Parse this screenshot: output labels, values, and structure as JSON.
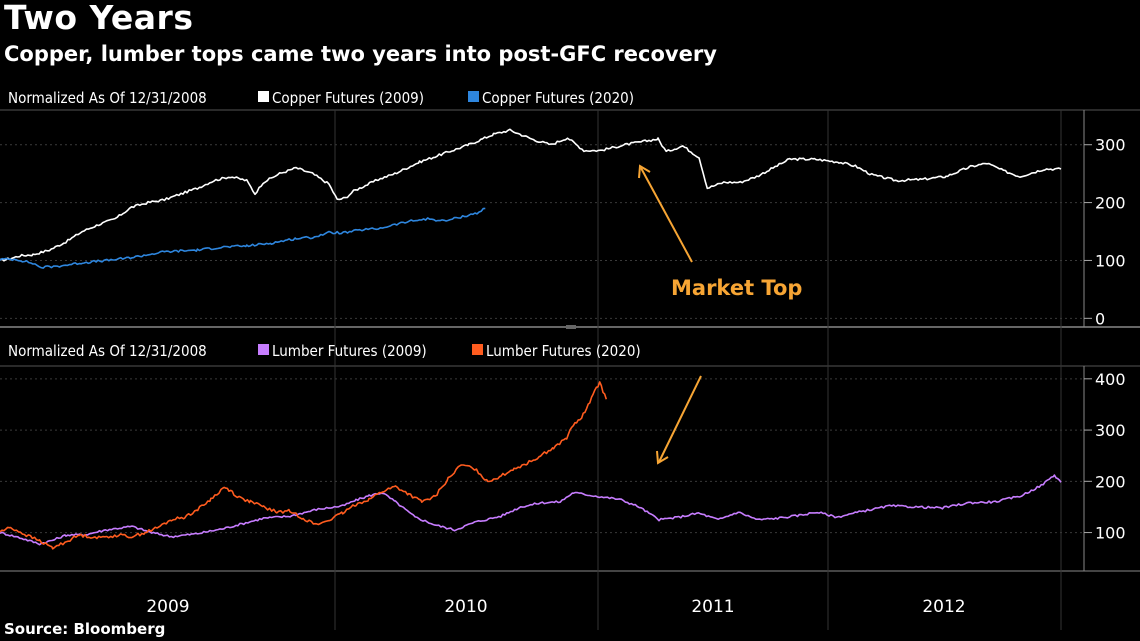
{
  "title": "Two Years",
  "subtitle": "Copper, lumber tops came two years into post-GFC recovery",
  "source": "Source: Bloomberg",
  "annotation_color": "#f7a534",
  "chart_data": [
    {
      "type": "line",
      "legend_prefix": "Normalized As Of 12/31/2008",
      "ylim": [
        -15,
        360
      ],
      "yticks": [
        0,
        100,
        200,
        300
      ],
      "x_axis_labels": [
        "2009",
        "2010",
        "2011",
        "2012"
      ],
      "annotation": "Market Top",
      "series": [
        {
          "name": "Copper Futures (2009)",
          "color": "#ffffff",
          "points": [
            [
              0,
              100
            ],
            [
              0.06,
              103
            ],
            [
              0.12,
              108
            ],
            [
              0.2,
              110
            ],
            [
              0.3,
              118
            ],
            [
              0.4,
              132
            ],
            [
              0.5,
              150
            ],
            [
              0.6,
              162
            ],
            [
              0.7,
              172
            ],
            [
              0.8,
              192
            ],
            [
              0.9,
              200
            ],
            [
              1.0,
              205
            ],
            [
              1.1,
              215
            ],
            [
              1.2,
              225
            ],
            [
              1.3,
              238
            ],
            [
              1.4,
              245
            ],
            [
              1.5,
              238
            ],
            [
              1.55,
              215
            ],
            [
              1.6,
              235
            ],
            [
              1.7,
              250
            ],
            [
              1.8,
              260
            ],
            [
              1.9,
              250
            ],
            [
              2.0,
              232
            ],
            [
              2.05,
              205
            ],
            [
              2.1,
              208
            ],
            [
              2.15,
              220
            ],
            [
              2.3,
              240
            ],
            [
              2.4,
              250
            ],
            [
              2.55,
              270
            ],
            [
              2.7,
              285
            ],
            [
              2.85,
              300
            ],
            [
              3.0,
              318
            ],
            [
              3.1,
              325
            ],
            [
              3.25,
              308
            ],
            [
              3.35,
              300
            ],
            [
              3.45,
              312
            ],
            [
              3.55,
              290
            ],
            [
              3.65,
              290
            ],
            [
              3.8,
              300
            ],
            [
              4.0,
              310
            ],
            [
              4.05,
              288
            ],
            [
              4.15,
              298
            ],
            [
              4.25,
              278
            ],
            [
              4.3,
              225
            ],
            [
              4.4,
              235
            ],
            [
              4.5,
              235
            ],
            [
              4.6,
              245
            ],
            [
              4.7,
              260
            ],
            [
              4.8,
              275
            ],
            [
              4.95,
              275
            ],
            [
              5.1,
              270
            ],
            [
              5.2,
              263
            ],
            [
              5.3,
              248
            ],
            [
              5.45,
              238
            ],
            [
              5.6,
              240
            ],
            [
              5.75,
              245
            ],
            [
              5.9,
              262
            ],
            [
              6.0,
              268
            ],
            [
              6.1,
              255
            ],
            [
              6.2,
              245
            ],
            [
              6.35,
              258
            ],
            [
              6.45,
              258
            ]
          ]
        },
        {
          "name": "Copper Futures (2020)",
          "color": "#2e86de",
          "points": [
            [
              0,
              102
            ],
            [
              0.1,
              102
            ],
            [
              0.2,
              95
            ],
            [
              0.25,
              88
            ],
            [
              0.35,
              90
            ],
            [
              0.5,
              96
            ],
            [
              0.65,
              100
            ],
            [
              0.8,
              105
            ],
            [
              0.9,
              110
            ],
            [
              1.0,
              115
            ],
            [
              1.2,
              118
            ],
            [
              1.35,
              123
            ],
            [
              1.5,
              125
            ],
            [
              1.65,
              130
            ],
            [
              1.8,
              138
            ],
            [
              1.9,
              140
            ],
            [
              2.0,
              148
            ],
            [
              2.1,
              148
            ],
            [
              2.2,
              153
            ],
            [
              2.3,
              155
            ],
            [
              2.4,
              162
            ],
            [
              2.5,
              168
            ],
            [
              2.6,
              172
            ],
            [
              2.7,
              168
            ],
            [
              2.8,
              175
            ],
            [
              2.9,
              182
            ],
            [
              2.95,
              190
            ]
          ]
        }
      ]
    },
    {
      "type": "line",
      "legend_prefix": "Normalized As Of 12/31/2008",
      "ylim": [
        25,
        425
      ],
      "yticks": [
        100,
        200,
        300,
        400
      ],
      "x_axis_labels": [
        "2009",
        "2010",
        "2011",
        "2012"
      ],
      "series": [
        {
          "name": "Lumber Futures (2009)",
          "color": "#c77dff",
          "points": [
            [
              0,
              100
            ],
            [
              0.15,
              90
            ],
            [
              0.3,
              78
            ],
            [
              0.4,
              85
            ],
            [
              0.5,
              95
            ],
            [
              0.65,
              96
            ],
            [
              0.8,
              105
            ],
            [
              1.0,
              112
            ],
            [
              1.15,
              100
            ],
            [
              1.3,
              92
            ],
            [
              1.5,
              98
            ],
            [
              1.7,
              108
            ],
            [
              1.85,
              118
            ],
            [
              2.0,
              128
            ],
            [
              2.2,
              132
            ],
            [
              2.4,
              145
            ],
            [
              2.6,
              152
            ],
            [
              2.7,
              163
            ],
            [
              2.8,
              172
            ],
            [
              2.9,
              178
            ],
            [
              3.0,
              160
            ],
            [
              3.15,
              130
            ],
            [
              3.3,
              115
            ],
            [
              3.45,
              105
            ],
            [
              3.6,
              120
            ],
            [
              3.8,
              132
            ],
            [
              3.95,
              150
            ],
            [
              4.1,
              158
            ],
            [
              4.25,
              160
            ],
            [
              4.35,
              178
            ],
            [
              4.55,
              170
            ],
            [
              4.7,
              165
            ],
            [
              4.85,
              150
            ],
            [
              5.0,
              125
            ],
            [
              5.15,
              130
            ],
            [
              5.3,
              138
            ],
            [
              5.45,
              125
            ],
            [
              5.6,
              140
            ],
            [
              5.75,
              125
            ],
            [
              5.9,
              128
            ],
            [
              6.05,
              133
            ],
            [
              6.2,
              140
            ],
            [
              6.35,
              130
            ],
            [
              6.55,
              142
            ],
            [
              6.75,
              152
            ],
            [
              6.95,
              150
            ],
            [
              7.15,
              148
            ],
            [
              7.35,
              158
            ],
            [
              7.55,
              160
            ],
            [
              7.75,
              172
            ],
            [
              7.9,
              192
            ],
            [
              8.0,
              212
            ],
            [
              8.05,
              198
            ]
          ]
        },
        {
          "name": "Lumber Futures (2020)",
          "color": "#ff5c1f",
          "points": [
            [
              0,
              102
            ],
            [
              0.08,
              110
            ],
            [
              0.2,
              95
            ],
            [
              0.3,
              84
            ],
            [
              0.4,
              70
            ],
            [
              0.5,
              82
            ],
            [
              0.6,
              95
            ],
            [
              0.75,
              90
            ],
            [
              0.9,
              95
            ],
            [
              1.0,
              92
            ],
            [
              1.1,
              100
            ],
            [
              1.2,
              110
            ],
            [
              1.3,
              125
            ],
            [
              1.4,
              130
            ],
            [
              1.5,
              145
            ],
            [
              1.6,
              165
            ],
            [
              1.7,
              188
            ],
            [
              1.75,
              182
            ],
            [
              1.8,
              170
            ],
            [
              1.9,
              160
            ],
            [
              2.0,
              150
            ],
            [
              2.1,
              140
            ],
            [
              2.2,
              142
            ],
            [
              2.3,
              128
            ],
            [
              2.4,
              115
            ],
            [
              2.5,
              125
            ],
            [
              2.6,
              138
            ],
            [
              2.7,
              155
            ],
            [
              2.8,
              165
            ],
            [
              2.9,
              180
            ],
            [
              3.0,
              190
            ],
            [
              3.1,
              175
            ],
            [
              3.2,
              160
            ],
            [
              3.3,
              170
            ],
            [
              3.4,
              205
            ],
            [
              3.5,
              232
            ],
            [
              3.6,
              225
            ],
            [
              3.7,
              200
            ],
            [
              3.8,
              210
            ],
            [
              3.9,
              225
            ],
            [
              4.0,
              235
            ],
            [
              4.1,
              250
            ],
            [
              4.2,
              265
            ],
            [
              4.3,
              285
            ],
            [
              4.35,
              310
            ],
            [
              4.4,
              320
            ],
            [
              4.45,
              340
            ],
            [
              4.5,
              372
            ],
            [
              4.55,
              392
            ],
            [
              4.6,
              360
            ]
          ]
        }
      ]
    }
  ]
}
